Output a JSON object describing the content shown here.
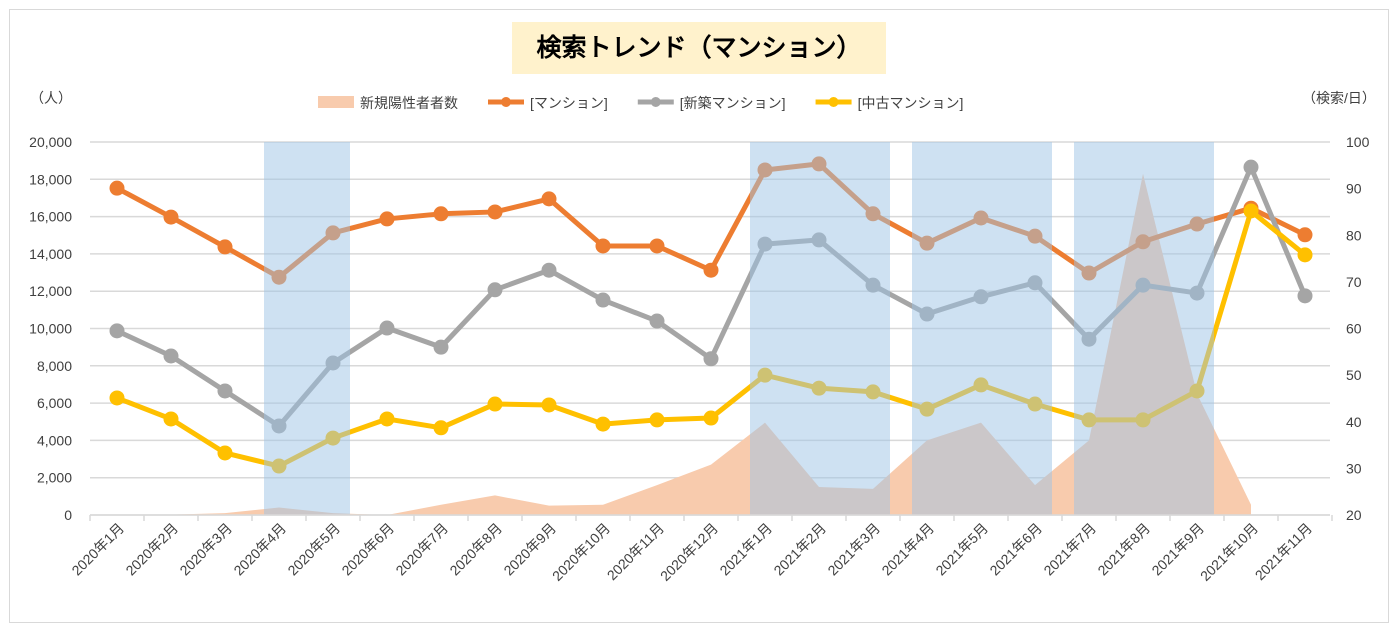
{
  "chart_data": {
    "type": "line",
    "title": "検索トレンド（マンション）",
    "ylabel_left": "（人）",
    "ylabel_right": "（検索/日）",
    "ylim_left": [
      0,
      20000
    ],
    "ylim_right": [
      20,
      100
    ],
    "yticks_left": [
      "0",
      "2,000",
      "4,000",
      "6,000",
      "8,000",
      "10,000",
      "12,000",
      "14,000",
      "16,000",
      "18,000",
      "20,000"
    ],
    "yticks_right": [
      "20",
      "30",
      "40",
      "50",
      "60",
      "70",
      "80",
      "90",
      "100"
    ],
    "grid": true,
    "legend_position": "top",
    "categories": [
      "2020年1月",
      "2020年2月",
      "2020年3月",
      "2020年4月",
      "2020年5月",
      "2020年6月",
      "2020年7月",
      "2020年8月",
      "2020年9月",
      "2020年10月",
      "2020年11月",
      "2020年12月",
      "2021年1月",
      "2021年2月",
      "2021年3月",
      "2021年4月",
      "2021年5月",
      "2021年6月",
      "2021年7月",
      "2021年8月",
      "2021年9月",
      "2021年10月",
      "2021年11月"
    ],
    "highlight_ranges": [
      [
        "2020年4月",
        "2020年5月"
      ],
      [
        "2021年1月",
        "2021年3月"
      ],
      [
        "2021年4月",
        "2021年6月"
      ],
      [
        "2021年7月",
        "2021年9月"
      ]
    ],
    "series": [
      {
        "name": "新規陽性者者数",
        "kind": "area",
        "axis": "left",
        "color": "#F8CBAD",
        "values": [
          0,
          20,
          100,
          400,
          100,
          0,
          550,
          1050,
          500,
          550,
          1600,
          2700,
          4950,
          1500,
          1400,
          4000,
          4950,
          1600,
          4000,
          18300,
          6500,
          550,
          null
        ]
      },
      {
        "name": "[マンション]",
        "kind": "line",
        "axis": "right",
        "color": "#ED7D31",
        "values": [
          90.1,
          83.9,
          77.5,
          71.0,
          80.5,
          83.5,
          84.6,
          85.0,
          87.8,
          77.7,
          77.7,
          72.5,
          94.0,
          95.3,
          84.6,
          78.3,
          83.7,
          79.8,
          71.9,
          78.6,
          82.4,
          85.8,
          80.1
        ]
      },
      {
        "name": "[新築マンション]",
        "kind": "line",
        "axis": "right",
        "color": "#A5A5A5",
        "values": [
          59.5,
          54.1,
          46.6,
          39.1,
          52.6,
          60.1,
          56.0,
          68.3,
          72.5,
          66.1,
          61.6,
          53.5,
          78.1,
          79.0,
          69.3,
          63.1,
          66.8,
          69.8,
          57.7,
          69.3,
          67.6,
          94.6,
          67.0
        ]
      },
      {
        "name": "[中古マンション]",
        "kind": "line",
        "axis": "right",
        "color": "#FFC000",
        "values": [
          45.1,
          40.6,
          33.3,
          30.5,
          36.5,
          40.6,
          38.7,
          43.8,
          43.6,
          39.5,
          40.4,
          40.8,
          50.0,
          47.2,
          46.4,
          42.7,
          47.9,
          43.8,
          40.4,
          40.4,
          46.6,
          85.2,
          75.8
        ]
      }
    ],
    "band_color": "#9DC3E6"
  }
}
